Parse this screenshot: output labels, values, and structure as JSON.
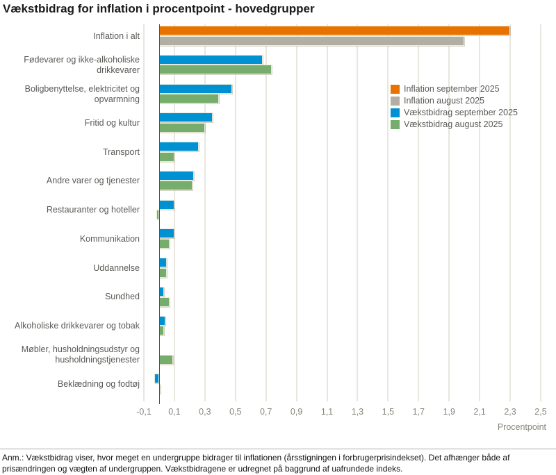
{
  "title": "Vækstbidrag for inflation i procentpoint - hovedgrupper",
  "footnote": "Anm.: Vækstbidrag viser, hvor meget en undergruppe bidrager til inflationen (årsstigningen i forbrugerprisindekset). Det afhænger både af prisændringen og vægten af undergruppen. Vækstbidragene er udregnet på baggrund af uafrundede indeks.",
  "chart_data": {
    "type": "bar",
    "orientation": "horizontal",
    "title": "Vækstbidrag for inflation i procentpoint - hovedgrupper",
    "unit_label": "Procentpoint",
    "grid": true,
    "legend_position": "top-right-inside",
    "axis": {
      "min": -0.1,
      "max": 2.5,
      "tick_values": [
        -0.1,
        0.1,
        0.3,
        0.5,
        0.7,
        0.9,
        1.1,
        1.3,
        1.5,
        1.7,
        1.9,
        2.1,
        2.3,
        2.5
      ],
      "tick_labels": [
        "-0,1",
        "0,1",
        "0,3",
        "0,5",
        "0,7",
        "0,9",
        "1,1",
        "1,3",
        "1,5",
        "1,7",
        "1,9",
        "2,1",
        "2,3",
        "2,5"
      ]
    },
    "legend": [
      {
        "label": "Inflation september 2025",
        "color": "#e87200"
      },
      {
        "label": "Inflation august 2025",
        "color": "#b1afa4"
      },
      {
        "label": "Vækstbidrag september 2025",
        "color": "#0091d2"
      },
      {
        "label": "Vækstbidrag august 2025",
        "color": "#76ad6c"
      }
    ],
    "rows": [
      {
        "label": "Inflation i alt",
        "legend_refs": [
          0,
          1
        ],
        "values": [
          2.3,
          2.0
        ]
      },
      {
        "label": "Fødevarer og ikke-alkoholiske drikkevarer",
        "legend_refs": [
          2,
          3
        ],
        "values": [
          0.68,
          0.74
        ]
      },
      {
        "label": "Boligbenyttelse, elektricitet og opvarmning",
        "legend_refs": [
          2,
          3
        ],
        "values": [
          0.48,
          0.39
        ]
      },
      {
        "label": "Fritid og kultur",
        "legend_refs": [
          2,
          3
        ],
        "values": [
          0.35,
          0.3
        ]
      },
      {
        "label": "Transport",
        "legend_refs": [
          2,
          3
        ],
        "values": [
          0.26,
          0.1
        ]
      },
      {
        "label": "Andre varer og tjenester",
        "legend_refs": [
          2,
          3
        ],
        "values": [
          0.23,
          0.22
        ]
      },
      {
        "label": "Restauranter og hoteller",
        "legend_refs": [
          2,
          3
        ],
        "values": [
          0.1,
          -0.02
        ]
      },
      {
        "label": "Kommunikation",
        "legend_refs": [
          2,
          3
        ],
        "values": [
          0.1,
          0.07
        ]
      },
      {
        "label": "Uddannelse",
        "legend_refs": [
          2,
          3
        ],
        "values": [
          0.05,
          0.05
        ]
      },
      {
        "label": "Sundhed",
        "legend_refs": [
          2,
          3
        ],
        "values": [
          0.03,
          0.07
        ]
      },
      {
        "label": "Alkoholiske drikkevarer og tobak",
        "legend_refs": [
          2,
          3
        ],
        "values": [
          0.04,
          0.03
        ]
      },
      {
        "label": "Møbler, husholdningsudstyr og husholdningstjenester",
        "legend_refs": [
          2,
          3
        ],
        "values": [
          0.0,
          0.09
        ]
      },
      {
        "label": "Beklædning og fodtøj",
        "legend_refs": [
          2,
          3
        ],
        "values": [
          -0.03,
          0.01
        ]
      }
    ]
  }
}
